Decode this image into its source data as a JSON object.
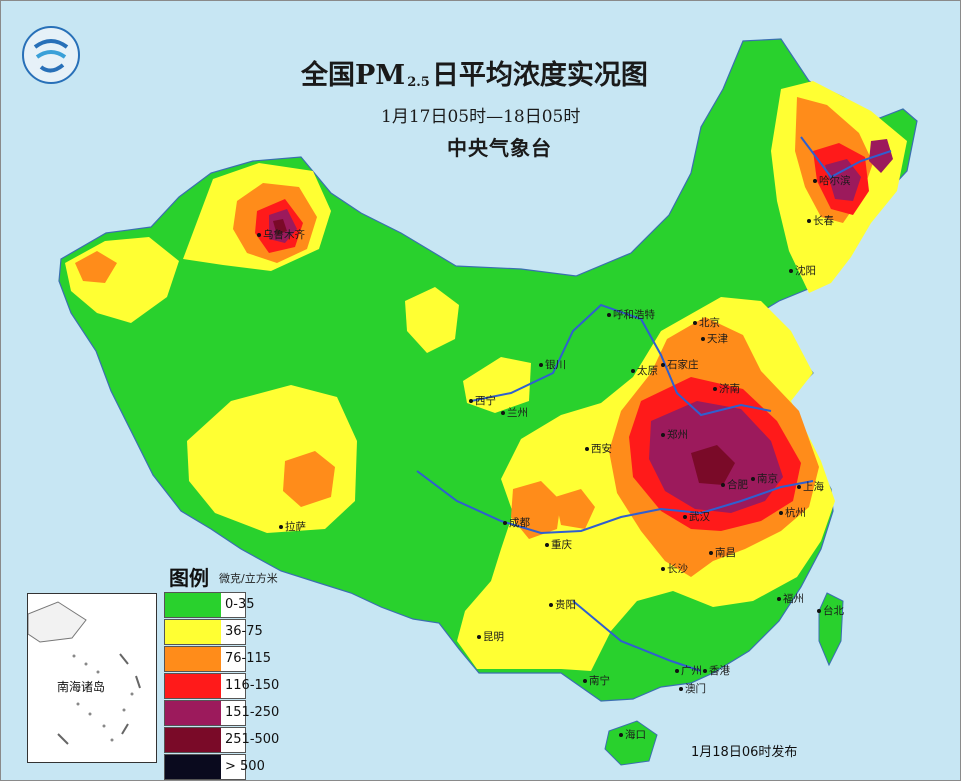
{
  "header": {
    "title_main": "全国PM",
    "title_sub": "2.5",
    "title_tail": "日平均浓度实况图",
    "time_range": "1月17日05时—18日05时",
    "agency": "中央气象台"
  },
  "legend": {
    "title": "图例",
    "unit": "微克/立方米",
    "items": [
      {
        "label": "0-35",
        "color": "#29d12d"
      },
      {
        "label": "36-75",
        "color": "#ffff33"
      },
      {
        "label": "76-115",
        "color": "#ff8c1a"
      },
      {
        "label": "116-150",
        "color": "#ff1a1a"
      },
      {
        "label": "151-250",
        "color": "#9c1a5c"
      },
      {
        "label": "251-500",
        "color": "#7a0a28"
      },
      {
        "label": "> 500",
        "color": "#0a0a1e"
      }
    ]
  },
  "inset": {
    "label": "南海诸岛"
  },
  "cities": {
    "urumqi": "乌鲁木齐",
    "harbin": "哈尔滨",
    "changchun": "长春",
    "shenyang": "沈阳",
    "hohhot": "呼和浩特",
    "beijing": "北京",
    "tianjin": "天津",
    "shijiazhuang": "石家庄",
    "taiyuan": "太原",
    "jinan": "济南",
    "yinchuan": "银川",
    "xining": "西宁",
    "lanzhou": "兰州",
    "zhengzhou": "郑州",
    "xian": "西安",
    "hefei": "合肥",
    "nanjing": "南京",
    "shanghai": "上海",
    "wuhan": "武汉",
    "hangzhou": "杭州",
    "lhasa": "拉萨",
    "chengdu": "成都",
    "chongqing": "重庆",
    "changsha": "长沙",
    "nanchang": "南昌",
    "guiyang": "贵阳",
    "fuzhou": "福州",
    "taipei": "台北",
    "kunming": "昆明",
    "nanning": "南宁",
    "guangzhou": "广州",
    "hongkong": "香港",
    "macau": "澳门",
    "haikou": "海口"
  },
  "footer": {
    "issued": "1月18日06时发布"
  }
}
